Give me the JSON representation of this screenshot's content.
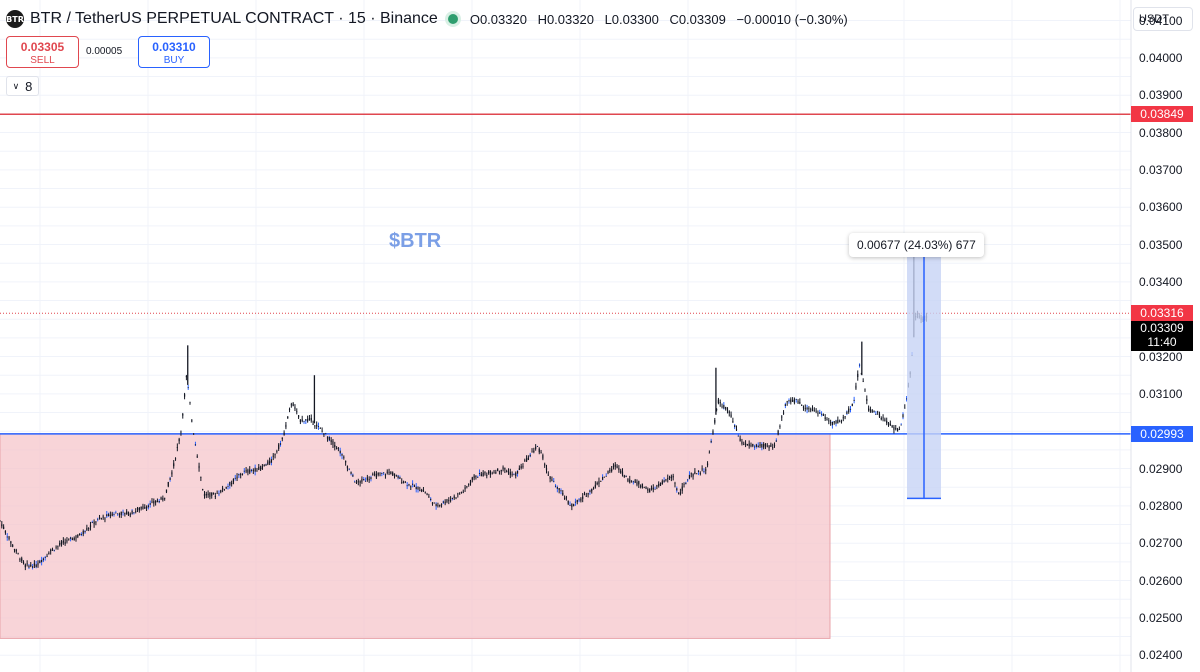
{
  "header": {
    "logo_text": "BTR",
    "title": "BTR / TetherUS PERPETUAL CONTRACT · 15 · Binance",
    "ohlc": {
      "open": "O0.03320",
      "high": "H0.03320",
      "low": "L0.03300",
      "close": "C0.03309",
      "change": "−0.00010 (−0.30%)"
    }
  },
  "trade": {
    "sell_price": "0.03305",
    "sell_label": "SELL",
    "spread": "0.00005",
    "buy_price": "0.03310",
    "buy_label": "BUY"
  },
  "indicator_count": "8",
  "currency": "USDT",
  "annotation": "$BTR",
  "measurement": {
    "text": "0.00677 (24.03%) 677",
    "from_price": 0.0282,
    "to_price": 0.03497
  },
  "colors": {
    "support_zone": "#f5c6cb",
    "resistance_line": "#e0474f",
    "support_line": "#2962ff",
    "candle": "#131722",
    "candle_wick_blue": "#2962ff",
    "measure_fill": "#c7d3f5",
    "measure_line": "#2962ff"
  },
  "chart_data": {
    "type": "candlestick",
    "title": "BTR / TetherUS PERPETUAL CONTRACT · 15 · Binance",
    "y_axis": {
      "side": "right",
      "ticks": [
        "0.04100",
        "0.04000",
        "0.03900",
        "0.03800",
        "0.03700",
        "0.03600",
        "0.03500",
        "0.03400",
        "0.03200",
        "0.03100",
        "0.02900",
        "0.02800",
        "0.02700",
        "0.02600",
        "0.02500",
        "0.02400"
      ],
      "tick_values": [
        0.041,
        0.04,
        0.039,
        0.038,
        0.037,
        0.036,
        0.035,
        0.034,
        0.032,
        0.031,
        0.029,
        0.028,
        0.027,
        0.026,
        0.025,
        0.024
      ],
      "range": [
        0.02355,
        0.04155
      ]
    },
    "grid": true,
    "horizontal_lines": [
      {
        "price": 0.03849,
        "label": "0.03849",
        "color": "red"
      },
      {
        "price": 0.02993,
        "label": "0.02993",
        "color": "blue"
      },
      {
        "price": 0.03316,
        "label": "0.03316",
        "color": "red",
        "style": "dotted"
      }
    ],
    "last_price": {
      "price": "0.03309",
      "countdown": "11:40"
    },
    "zone": {
      "price_top": 0.02993,
      "price_bottom": 0.02445
    },
    "price_path": [
      [
        0.0,
        0.0276
      ],
      [
        1.0,
        0.027
      ],
      [
        2.2,
        0.0264
      ],
      [
        3.2,
        0.0264
      ],
      [
        4.5,
        0.0268
      ],
      [
        5.5,
        0.027
      ],
      [
        7.0,
        0.0272
      ],
      [
        8.5,
        0.0276
      ],
      [
        10.0,
        0.0278
      ],
      [
        11.5,
        0.0278
      ],
      [
        13.0,
        0.028
      ],
      [
        14.5,
        0.0282
      ],
      [
        15.3,
        0.029
      ],
      [
        16.0,
        0.03
      ],
      [
        16.5,
        0.0315
      ],
      [
        17.0,
        0.0302
      ],
      [
        18.0,
        0.0283
      ],
      [
        19.0,
        0.0283
      ],
      [
        20.0,
        0.0285
      ],
      [
        21.5,
        0.0289
      ],
      [
        23.0,
        0.029
      ],
      [
        24.0,
        0.0292
      ],
      [
        25.0,
        0.0298
      ],
      [
        25.8,
        0.0308
      ],
      [
        26.5,
        0.0303
      ],
      [
        27.5,
        0.0303
      ],
      [
        28.5,
        0.03
      ],
      [
        30.0,
        0.0295
      ],
      [
        31.5,
        0.0286
      ],
      [
        33.0,
        0.0288
      ],
      [
        34.5,
        0.0289
      ],
      [
        36.0,
        0.0286
      ],
      [
        37.5,
        0.0284
      ],
      [
        38.5,
        0.028
      ],
      [
        40.0,
        0.0282
      ],
      [
        41.0,
        0.0284
      ],
      [
        42.0,
        0.0288
      ],
      [
        43.5,
        0.0289
      ],
      [
        44.5,
        0.029
      ],
      [
        45.5,
        0.0288
      ],
      [
        46.5,
        0.0292
      ],
      [
        47.5,
        0.0296
      ],
      [
        48.0,
        0.0293
      ],
      [
        48.5,
        0.0288
      ],
      [
        49.5,
        0.0284
      ],
      [
        50.5,
        0.028
      ],
      [
        51.5,
        0.0282
      ],
      [
        52.5,
        0.0285
      ],
      [
        53.5,
        0.0288
      ],
      [
        54.5,
        0.0291
      ],
      [
        55.5,
        0.0287
      ],
      [
        56.5,
        0.0286
      ],
      [
        57.5,
        0.0284
      ],
      [
        58.5,
        0.0286
      ],
      [
        59.5,
        0.0288
      ],
      [
        60.0,
        0.0283
      ],
      [
        61.0,
        0.0288
      ],
      [
        62.5,
        0.029
      ],
      [
        63.5,
        0.0308
      ],
      [
        64.5,
        0.0305
      ],
      [
        65.5,
        0.0297
      ],
      [
        66.5,
        0.0296
      ],
      [
        67.5,
        0.0296
      ],
      [
        68.5,
        0.0296
      ],
      [
        69.5,
        0.0308
      ],
      [
        70.5,
        0.0308
      ],
      [
        71.5,
        0.0306
      ],
      [
        72.5,
        0.0305
      ],
      [
        73.5,
        0.0302
      ],
      [
        74.5,
        0.0303
      ],
      [
        75.5,
        0.0308
      ],
      [
        76.0,
        0.0318
      ],
      [
        76.8,
        0.0306
      ],
      [
        77.5,
        0.0305
      ],
      [
        78.5,
        0.0302
      ],
      [
        79.5,
        0.03
      ],
      [
        80.0,
        0.0306
      ],
      [
        80.5,
        0.0316
      ],
      [
        81.0,
        0.0332
      ],
      [
        81.5,
        0.033
      ],
      [
        82.0,
        0.03309
      ]
    ],
    "spikes": [
      [
        16.6,
        0.0323
      ],
      [
        27.8,
        0.0315
      ],
      [
        63.3,
        0.0317
      ],
      [
        76.2,
        0.0324
      ],
      [
        80.8,
        0.0348
      ]
    ],
    "x_range": [
      0,
      100
    ]
  }
}
